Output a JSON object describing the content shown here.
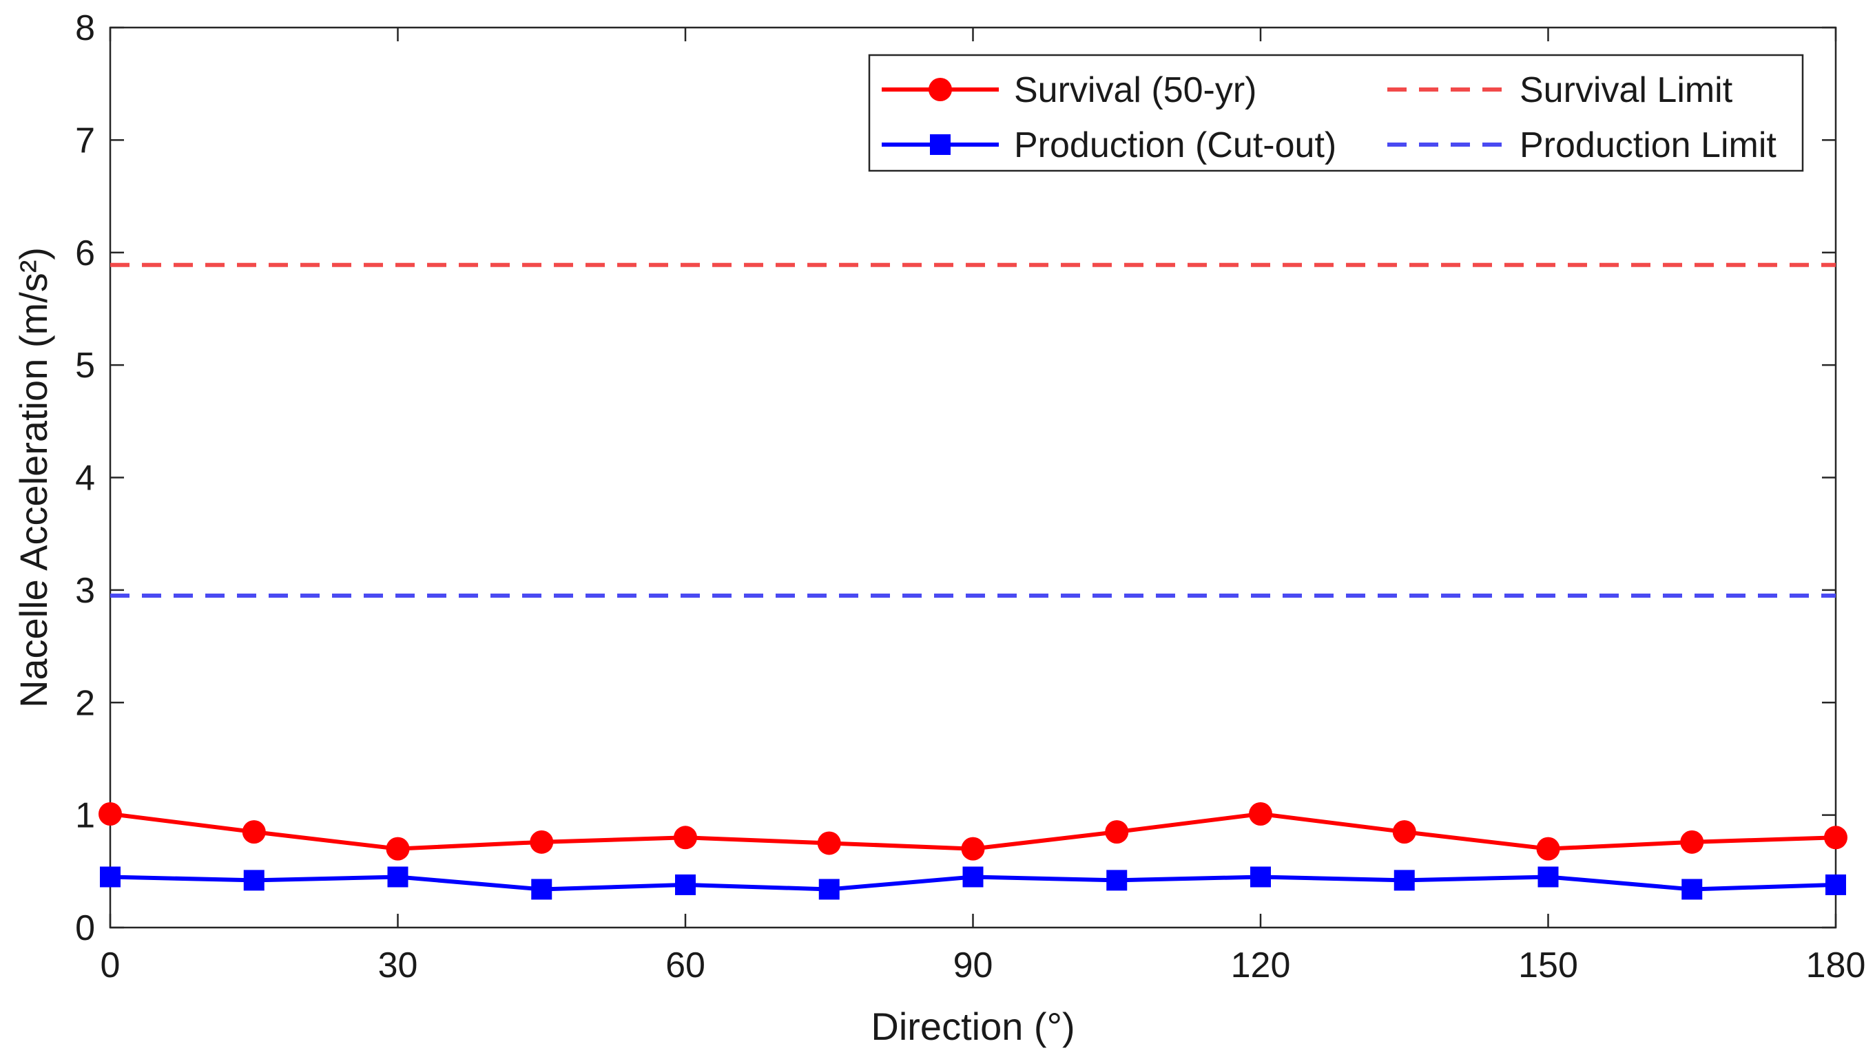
{
  "chart_data": {
    "type": "line",
    "xlabel": "Direction (°)",
    "ylabel": "Nacelle Acceleration (m/s²)",
    "xlim": [
      0,
      180
    ],
    "ylim": [
      0,
      8
    ],
    "xticks": [
      0,
      30,
      60,
      90,
      120,
      150,
      180
    ],
    "xtick_labels": [
      "0",
      "30",
      "60",
      "90",
      "120",
      "150",
      "180"
    ],
    "yticks": [
      0,
      1,
      2,
      3,
      4,
      5,
      6,
      7,
      8
    ],
    "ytick_labels": [
      "0",
      "1",
      "2",
      "3",
      "4",
      "5",
      "6",
      "7",
      "8"
    ],
    "grid": false,
    "legend_position": "top-right",
    "x": [
      0,
      15,
      30,
      45,
      60,
      75,
      90,
      105,
      120,
      135,
      150,
      165,
      180
    ],
    "series": [
      {
        "name": "Survival (50-yr)",
        "color": "#ff0000",
        "marker": "circle",
        "style": "solid",
        "values": [
          1.01,
          0.85,
          0.7,
          0.76,
          0.8,
          0.75,
          0.7,
          0.85,
          1.01,
          0.85,
          0.7,
          0.76,
          0.8
        ]
      },
      {
        "name": "Production (Cut-out)",
        "color": "#0000ff",
        "marker": "square",
        "style": "solid",
        "values": [
          0.45,
          0.42,
          0.45,
          0.34,
          0.38,
          0.34,
          0.45,
          0.42,
          0.45,
          0.42,
          0.45,
          0.34,
          0.38
        ]
      }
    ],
    "reference_lines": [
      {
        "name": "Survival Limit",
        "y": 5.89,
        "color": "#f24a4a",
        "style": "dashed"
      },
      {
        "name": "Production Limit",
        "y": 2.95,
        "color": "#4a4af2",
        "style": "dashed"
      }
    ]
  }
}
